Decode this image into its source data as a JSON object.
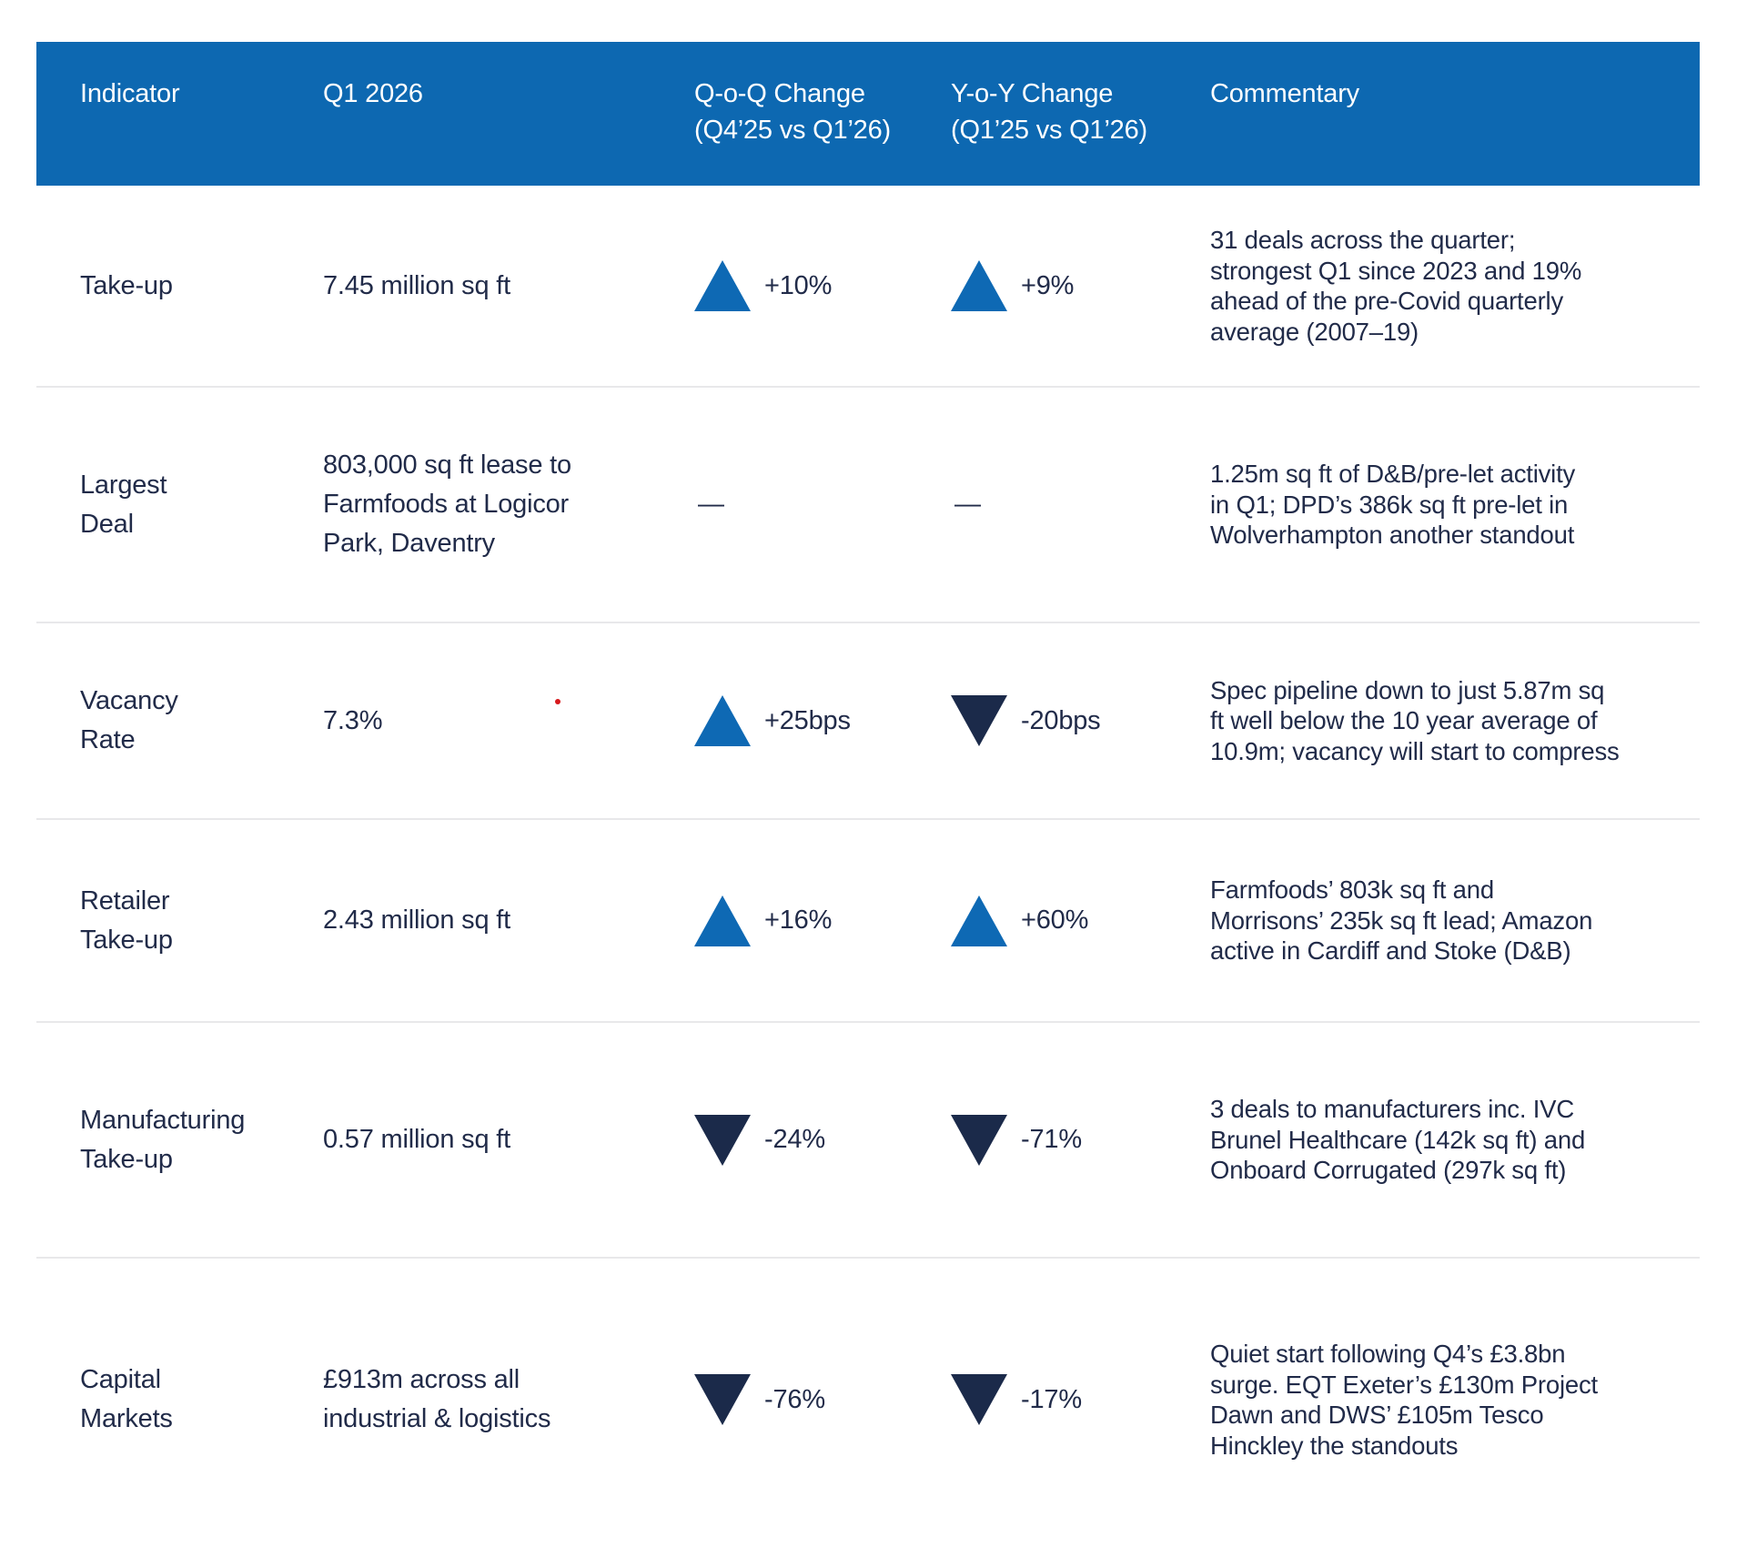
{
  "colors": {
    "header_bg": "#0d68b1",
    "header_text": "#ffffff",
    "body_text": "#212b49",
    "up": "#0e69b4",
    "down": "#1b2a4a",
    "divider": "#e8e8ea",
    "red_dot": "#d7191c"
  },
  "header": {
    "columns": [
      {
        "label": "Indicator"
      },
      {
        "label": "Q1 2026"
      },
      {
        "label": "Q-o-Q Change\n(Q4’25 vs Q1’26)"
      },
      {
        "label": "Y-o-Y Change\n(Q1’25 vs Q1’26)"
      },
      {
        "label": "Commentary"
      }
    ]
  },
  "rows": [
    {
      "indicator": "Take-up",
      "value": "7.45 million sq ft",
      "qoq": {
        "icon": "up-triangle",
        "label": "+10%"
      },
      "yoy": {
        "icon": "up-triangle",
        "label": "+9%"
      },
      "commentary": "31 deals across the quarter;\nstrongest Q1 since 2023 and 19%\nahead of the pre-Covid quarterly\naverage (2007–19)"
    },
    {
      "indicator": "Largest\nDeal",
      "value": "803,000 sq ft lease to\nFarmfoods at Logicor\nPark, Daventry",
      "qoq": {
        "icon": "none",
        "label": "—"
      },
      "yoy": {
        "icon": "none",
        "label": "—"
      },
      "commentary": "1.25m sq ft of D&B/pre-let activity\nin Q1; DPD’s 386k sq ft pre-let in\nWolverhampton another standout"
    },
    {
      "indicator": "Vacancy\nRate",
      "value": "7.3%",
      "qoq": {
        "icon": "up-triangle",
        "label": "+25bps"
      },
      "yoy": {
        "icon": "down-triangle",
        "label": "-20bps"
      },
      "commentary": "Spec pipeline down to just 5.87m sq\nft well below the 10 year average of\n10.9m; vacancy will start to compress"
    },
    {
      "indicator": "Retailer\nTake-up",
      "value": "2.43 million sq ft",
      "qoq": {
        "icon": "up-triangle",
        "label": "+16%"
      },
      "yoy": {
        "icon": "up-triangle",
        "label": "+60%"
      },
      "commentary": "Farmfoods’ 803k sq ft and\nMorrisons’ 235k sq ft lead; Amazon\nactive in Cardiff and Stoke (D&B)"
    },
    {
      "indicator": "Manufacturing\nTake-up",
      "value": "0.57 million sq ft",
      "qoq": {
        "icon": "down-triangle",
        "label": "-24%"
      },
      "yoy": {
        "icon": "down-triangle",
        "label": "-71%"
      },
      "commentary": "3 deals to manufacturers inc. IVC\nBrunel Healthcare (142k sq ft) and\nOnboard Corrugated (297k sq ft)"
    },
    {
      "indicator": "Capital\nMarkets",
      "value": "£913m across all\nindustrial & logistics",
      "qoq": {
        "icon": "down-triangle",
        "label": "-76%"
      },
      "yoy": {
        "icon": "down-triangle",
        "label": "-17%"
      },
      "commentary": "Quiet start following Q4’s £3.8bn\nsurge. EQT Exeter’s £130m Project\nDawn and DWS’ £105m Tesco\nHinckley the standouts"
    }
  ]
}
